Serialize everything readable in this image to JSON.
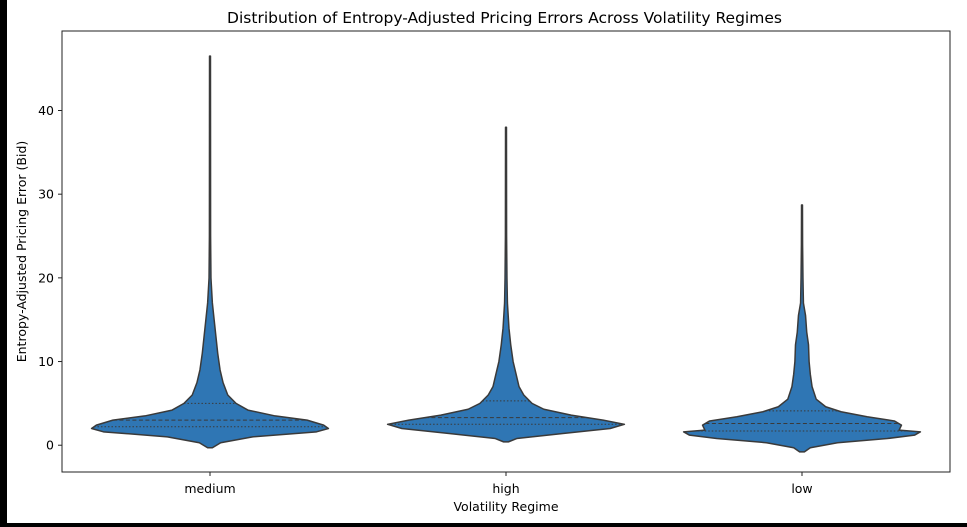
{
  "chart_data": {
    "type": "violin",
    "title": "Distribution of Entropy-Adjusted Pricing Errors Across Volatility Regimes",
    "xlabel": "Volatility Regime",
    "ylabel": "Entropy-Adjusted Pricing Error (Bid)",
    "categories": [
      "medium",
      "high",
      "low"
    ],
    "ylim": [
      -3.2,
      49.5
    ],
    "yticks": [
      0,
      10,
      20,
      30,
      40
    ],
    "inner": "quartile",
    "grid": false,
    "colors": {
      "fill": "#2f76b4",
      "edge": "#3a3a3a",
      "background": "#ffffff",
      "outer": "#000000"
    },
    "violins": [
      {
        "category": "medium",
        "min": -0.3,
        "max": 46.5,
        "quartiles": [
          2.2,
          3.0,
          5.0
        ],
        "profile": [
          [
            -0.3,
            0.02
          ],
          [
            0.3,
            0.09
          ],
          [
            1.0,
            0.36
          ],
          [
            1.6,
            0.9
          ],
          [
            2.0,
            1.0
          ],
          [
            2.4,
            0.96
          ],
          [
            3.0,
            0.82
          ],
          [
            3.5,
            0.55
          ],
          [
            4.2,
            0.32
          ],
          [
            5.0,
            0.22
          ],
          [
            6.0,
            0.15
          ],
          [
            7.5,
            0.11
          ],
          [
            9.0,
            0.085
          ],
          [
            11.0,
            0.065
          ],
          [
            13.0,
            0.05
          ],
          [
            15.0,
            0.035
          ],
          [
            17.0,
            0.02
          ],
          [
            20.0,
            0.008
          ],
          [
            25.0,
            0.005
          ],
          [
            46.5,
            0.004
          ]
        ]
      },
      {
        "category": "high",
        "min": 0.4,
        "max": 38.0,
        "quartiles": [
          2.5,
          3.3,
          5.3
        ],
        "profile": [
          [
            0.4,
            0.02
          ],
          [
            0.8,
            0.09
          ],
          [
            1.4,
            0.48
          ],
          [
            2.0,
            0.88
          ],
          [
            2.5,
            1.0
          ],
          [
            3.0,
            0.82
          ],
          [
            3.6,
            0.55
          ],
          [
            4.3,
            0.32
          ],
          [
            5.0,
            0.22
          ],
          [
            6.0,
            0.15
          ],
          [
            7.0,
            0.11
          ],
          [
            8.5,
            0.085
          ],
          [
            10.0,
            0.06
          ],
          [
            12.0,
            0.04
          ],
          [
            14.0,
            0.025
          ],
          [
            17.0,
            0.012
          ],
          [
            20.0,
            0.008
          ],
          [
            25.0,
            0.005
          ],
          [
            38.0,
            0.004
          ]
        ]
      },
      {
        "category": "low",
        "min": -0.8,
        "max": 28.7,
        "quartiles": [
          1.7,
          2.6,
          4.1
        ],
        "profile": [
          [
            -0.8,
            0.02
          ],
          [
            -0.3,
            0.07
          ],
          [
            0.3,
            0.3
          ],
          [
            0.8,
            0.72
          ],
          [
            1.2,
            0.95
          ],
          [
            1.6,
            1.0
          ],
          [
            1.8,
            0.82
          ],
          [
            2.4,
            0.84
          ],
          [
            2.9,
            0.78
          ],
          [
            3.4,
            0.55
          ],
          [
            4.0,
            0.33
          ],
          [
            4.6,
            0.2
          ],
          [
            5.5,
            0.12
          ],
          [
            7.0,
            0.085
          ],
          [
            8.5,
            0.07
          ],
          [
            10.0,
            0.06
          ],
          [
            12.0,
            0.055
          ],
          [
            13.5,
            0.04
          ],
          [
            15.5,
            0.03
          ],
          [
            17.0,
            0.012
          ],
          [
            20.0,
            0.008
          ],
          [
            24.0,
            0.005
          ],
          [
            28.7,
            0.004
          ]
        ]
      }
    ]
  }
}
